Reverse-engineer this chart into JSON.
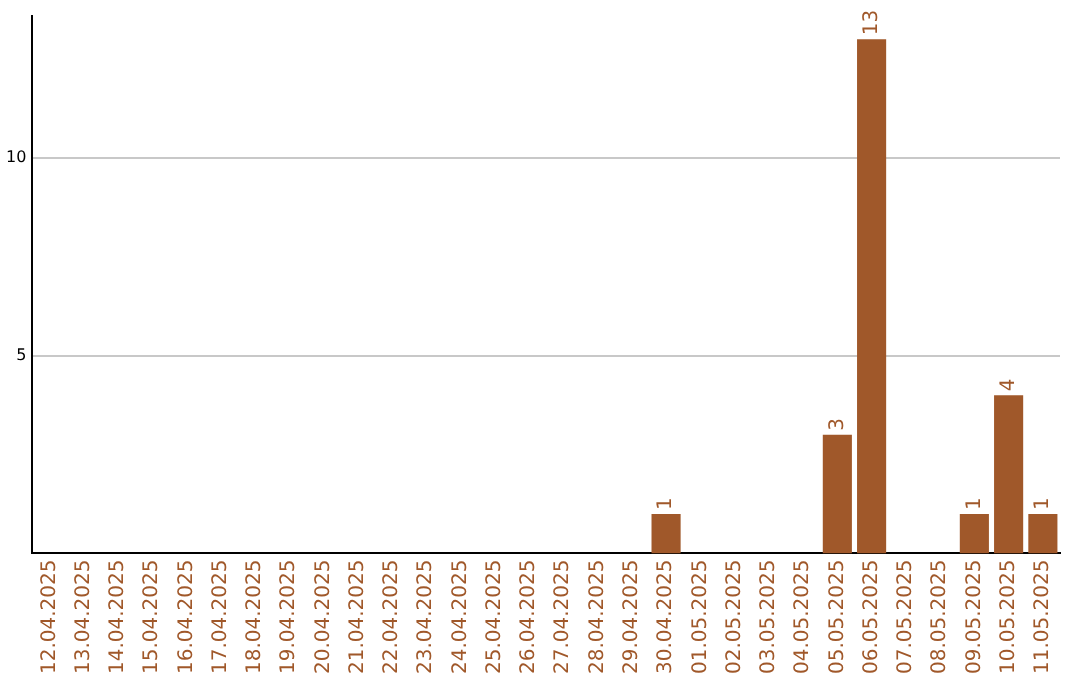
{
  "chart_data": {
    "type": "bar",
    "categories": [
      "12.04.2025",
      "13.04.2025",
      "14.04.2025",
      "15.04.2025",
      "16.04.2025",
      "17.04.2025",
      "18.04.2025",
      "19.04.2025",
      "20.04.2025",
      "21.04.2025",
      "22.04.2025",
      "23.04.2025",
      "24.04.2025",
      "25.04.2025",
      "26.04.2025",
      "27.04.2025",
      "28.04.2025",
      "29.04.2025",
      "30.04.2025",
      "01.05.2025",
      "02.05.2025",
      "03.05.2025",
      "04.05.2025",
      "05.05.2025",
      "06.05.2025",
      "07.05.2025",
      "08.05.2025",
      "09.05.2025",
      "10.05.2025",
      "11.05.2025"
    ],
    "values": [
      0,
      0,
      0,
      0,
      0,
      0,
      0,
      0,
      0,
      0,
      0,
      0,
      0,
      0,
      0,
      0,
      0,
      0,
      1,
      0,
      0,
      0,
      0,
      3,
      13,
      0,
      0,
      1,
      4,
      1
    ],
    "value_labels": [
      null,
      null,
      null,
      null,
      null,
      null,
      null,
      null,
      null,
      null,
      null,
      null,
      null,
      null,
      null,
      null,
      null,
      null,
      "1",
      null,
      null,
      null,
      null,
      "3",
      "13",
      null,
      null,
      "1",
      "4",
      "1"
    ],
    "color": "#a0582a",
    "ylim": [
      0,
      13.6
    ],
    "yticks": [
      5,
      10
    ],
    "grid": "y"
  }
}
